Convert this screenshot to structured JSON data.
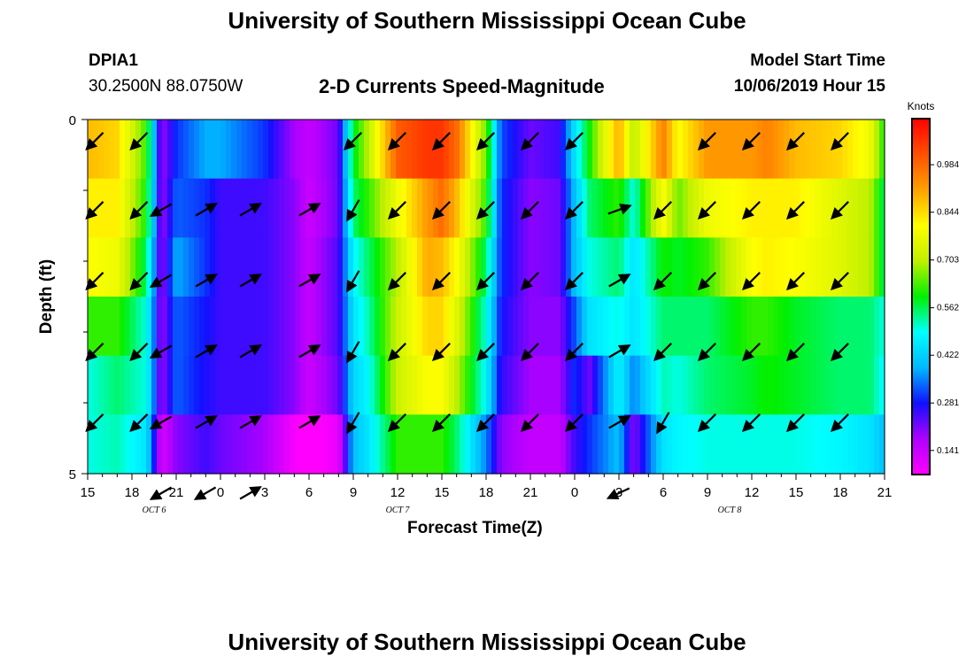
{
  "page": {
    "title_top": "University of Southern Mississippi Ocean Cube",
    "title_bottom": "University of Southern Mississippi Ocean Cube",
    "station_id": "DPIA1",
    "station_coords": "30.2500N 88.0750W",
    "model_label": "Model Start Time",
    "model_time": "10/06/2019 Hour 15"
  },
  "chart_data": {
    "type": "heatmap",
    "title": "2-D Currents Speed-Magnitude",
    "xlabel": "Forecast Time(Z)",
    "ylabel": "Depth (ft)",
    "ylim": [
      0,
      5
    ],
    "y_ticks": [
      "0",
      "5"
    ],
    "x_tick_labels": [
      "15",
      "18",
      "21",
      "0",
      "3",
      "6",
      "9",
      "12",
      "15",
      "18",
      "21",
      "0",
      "3",
      "6",
      "9",
      "12",
      "15",
      "18",
      "21"
    ],
    "date_labels": [
      {
        "text": "OCT 6",
        "at_tick_index": 1.5
      },
      {
        "text": "OCT 7",
        "at_tick_index": 7
      },
      {
        "text": "OCT 8",
        "at_tick_index": 14.5
      }
    ],
    "x_hours_start": 0,
    "x_hours_end": 54,
    "colorbar": {
      "unit": "Knots",
      "ticks": [
        "0.141",
        "0.281",
        "0.422",
        "0.562",
        "0.703",
        "0.844",
        "0.984"
      ],
      "tick_values": [
        0.141,
        0.281,
        0.422,
        0.562,
        0.703,
        0.844,
        0.984
      ],
      "min": 0.07,
      "max": 1.12,
      "colors": [
        "#ff00ff",
        "#b000ff",
        "#1010ff",
        "#00b8ff",
        "#00ffff",
        "#00f000",
        "#c0f000",
        "#ffff00",
        "#ffa000",
        "#ff5000",
        "#ff0000"
      ]
    },
    "depth_levels": [
      0.25,
      1.25,
      2.25,
      3.25,
      4.25
    ],
    "speed_nodes_hours": [
      0,
      2,
      4,
      5,
      6,
      8,
      9,
      12,
      14,
      15,
      17,
      18,
      19,
      21,
      23,
      24,
      25,
      27,
      28,
      30,
      32,
      33,
      34,
      36,
      37,
      39,
      40,
      42,
      45,
      46,
      48,
      51,
      53,
      54
    ],
    "speed_bands": [
      [
        0.88,
        0.85,
        0.62,
        0.18,
        0.3,
        0.38,
        0.38,
        0.3,
        0.18,
        0.15,
        0.22,
        0.58,
        0.7,
        1.0,
        1.05,
        1.05,
        0.98,
        0.65,
        0.32,
        0.22,
        0.25,
        0.45,
        0.6,
        0.9,
        0.7,
        0.95,
        0.8,
        0.92,
        0.92,
        0.95,
        0.88,
        0.85,
        0.78,
        0.6
      ],
      [
        0.82,
        0.82,
        0.6,
        0.18,
        0.33,
        0.3,
        0.25,
        0.25,
        0.2,
        0.14,
        0.22,
        0.55,
        0.62,
        0.78,
        0.92,
        0.98,
        0.88,
        0.62,
        0.3,
        0.2,
        0.22,
        0.4,
        0.55,
        0.62,
        0.5,
        0.8,
        0.65,
        0.78,
        0.82,
        0.82,
        0.82,
        0.75,
        0.7,
        0.55
      ],
      [
        0.8,
        0.78,
        0.55,
        0.18,
        0.38,
        0.3,
        0.25,
        0.25,
        0.2,
        0.15,
        0.24,
        0.48,
        0.55,
        0.7,
        0.9,
        0.88,
        0.8,
        0.55,
        0.3,
        0.2,
        0.22,
        0.4,
        0.5,
        0.55,
        0.45,
        0.6,
        0.58,
        0.62,
        0.8,
        0.82,
        0.8,
        0.75,
        0.7,
        0.55
      ],
      [
        0.62,
        0.62,
        0.5,
        0.18,
        0.33,
        0.28,
        0.25,
        0.25,
        0.2,
        0.15,
        0.24,
        0.45,
        0.52,
        0.72,
        0.85,
        0.85,
        0.75,
        0.5,
        0.28,
        0.2,
        0.2,
        0.32,
        0.45,
        0.5,
        0.45,
        0.55,
        0.55,
        0.55,
        0.62,
        0.62,
        0.58,
        0.55,
        0.55,
        0.5
      ],
      [
        0.5,
        0.55,
        0.5,
        0.18,
        0.33,
        0.27,
        0.25,
        0.25,
        0.2,
        0.14,
        0.22,
        0.43,
        0.48,
        0.72,
        0.8,
        0.8,
        0.7,
        0.48,
        0.26,
        0.18,
        0.18,
        0.3,
        0.22,
        0.48,
        0.35,
        0.52,
        0.5,
        0.55,
        0.58,
        0.6,
        0.58,
        0.55,
        0.55,
        0.48
      ],
      [
        0.5,
        0.52,
        0.45,
        0.12,
        0.2,
        0.25,
        0.22,
        0.18,
        0.08,
        0.05,
        0.1,
        0.4,
        0.45,
        0.62,
        0.62,
        0.62,
        0.55,
        0.35,
        0.2,
        0.15,
        0.15,
        0.25,
        0.3,
        0.4,
        0.2,
        0.45,
        0.48,
        0.5,
        0.5,
        0.5,
        0.5,
        0.48,
        0.45,
        0.4
      ]
    ],
    "vector_hours": [
      0.5,
      3.5,
      5.0,
      8.0,
      11.0,
      15.0,
      18.0,
      21.0,
      24.0,
      27.0,
      30.0,
      33.0,
      36.0,
      39.0,
      42.0,
      45.0,
      48.0,
      51.0
    ],
    "vector_directions": [
      [
        135,
        135,
        0,
        0,
        0,
        0,
        135,
        135,
        135,
        135,
        135,
        135,
        0,
        0,
        135,
        135,
        135,
        135
      ],
      [
        135,
        135,
        150,
        330,
        330,
        330,
        120,
        135,
        135,
        135,
        135,
        135,
        340,
        135,
        135,
        135,
        135,
        135
      ],
      [
        135,
        135,
        150,
        330,
        330,
        330,
        120,
        135,
        135,
        135,
        135,
        135,
        330,
        135,
        135,
        135,
        135,
        135
      ],
      [
        135,
        135,
        150,
        330,
        330,
        330,
        120,
        135,
        135,
        135,
        135,
        135,
        330,
        135,
        135,
        135,
        135,
        135
      ],
      [
        135,
        135,
        150,
        330,
        330,
        330,
        120,
        135,
        135,
        135,
        135,
        135,
        330,
        120,
        135,
        135,
        135,
        135
      ],
      [
        0,
        0,
        150,
        150,
        330,
        0,
        0,
        0,
        0,
        0,
        0,
        0,
        155,
        0,
        0,
        0,
        0,
        0
      ]
    ]
  }
}
